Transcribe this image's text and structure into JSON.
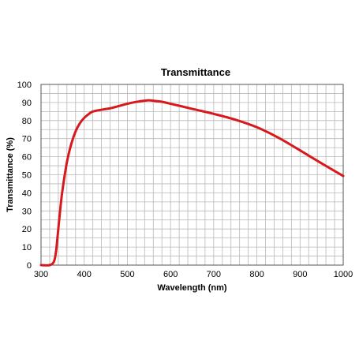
{
  "chart_data": {
    "type": "line",
    "title": "Transmittance",
    "xlabel": "Wavelength (nm)",
    "ylabel": "Transmittance (%)",
    "xlim": [
      300,
      1000
    ],
    "ylim": [
      0,
      100
    ],
    "grid": true,
    "legend": "none",
    "x_ticks": [
      300,
      400,
      500,
      600,
      700,
      800,
      900,
      1000
    ],
    "x_tick_labels": [
      "300",
      "400",
      "500",
      "600",
      "700",
      "800",
      "900",
      "1000"
    ],
    "y_ticks": [
      0,
      10,
      20,
      30,
      40,
      50,
      60,
      70,
      80,
      90,
      100
    ],
    "y_tick_labels": [
      "0",
      "10",
      "20",
      "30",
      "40",
      "50",
      "60",
      "70",
      "80",
      "90",
      "100"
    ],
    "series": [
      {
        "color": "#d7191c",
        "x": [
          300,
          320,
          330,
          335,
          340,
          345,
          350,
          360,
          370,
          380,
          390,
          400,
          410,
          420,
          440,
          460,
          480,
          500,
          520,
          540,
          550,
          560,
          580,
          600,
          620,
          650,
          700,
          750,
          800,
          850,
          900,
          950,
          1000
        ],
        "y": [
          0,
          0,
          2,
          8,
          20,
          32,
          42,
          57,
          67,
          74,
          78.5,
          81.5,
          83.5,
          85,
          86,
          86.8,
          88,
          89.3,
          90.3,
          91,
          91.2,
          91,
          90.4,
          89.3,
          88.2,
          86.5,
          83.7,
          80.5,
          76.3,
          70.5,
          63.5,
          56.3,
          49.3
        ]
      }
    ]
  }
}
